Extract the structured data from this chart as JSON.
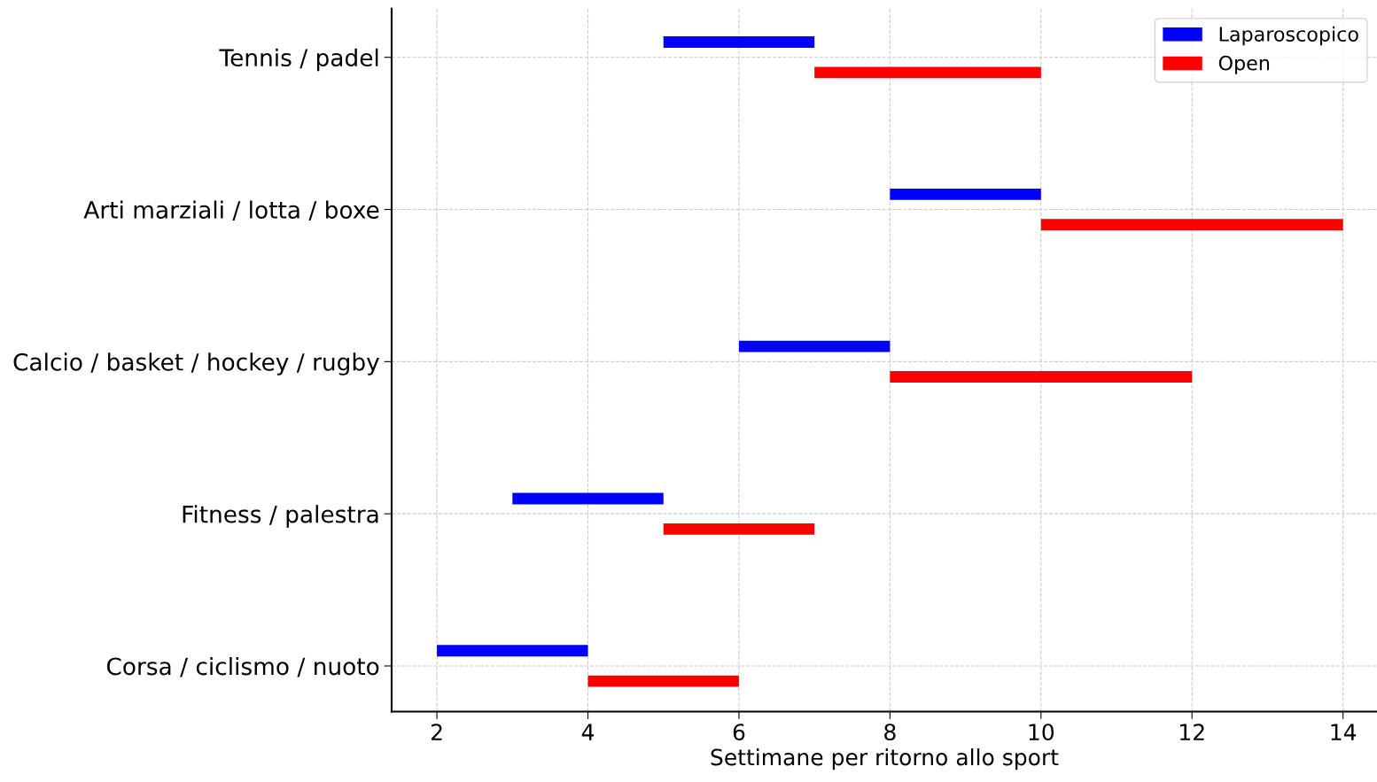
{
  "chart_data": {
    "type": "bar",
    "orientation": "horizontal",
    "xlabel": "Settimane per ritorno allo sport",
    "categories": [
      "Tennis / padel",
      "Arti marziali / lotta / boxe",
      "Calcio / basket / hockey / rugby",
      "Fitness / palestra",
      "Corsa / ciclismo / nuoto"
    ],
    "series": [
      {
        "name": "Laparoscopico",
        "color": "#0000ff",
        "base": [
          5,
          8,
          6,
          3,
          2
        ],
        "values": [
          2,
          2,
          2,
          2,
          2
        ]
      },
      {
        "name": "Open",
        "color": "#ff0000",
        "base": [
          7,
          10,
          8,
          5,
          4
        ],
        "values": [
          3,
          4,
          4,
          2,
          2
        ]
      }
    ],
    "xlim": [
      1.4,
      14.45
    ],
    "xticks": [
      2,
      4,
      6,
      8,
      10,
      12,
      14
    ],
    "grid": true,
    "legend": "top right"
  }
}
